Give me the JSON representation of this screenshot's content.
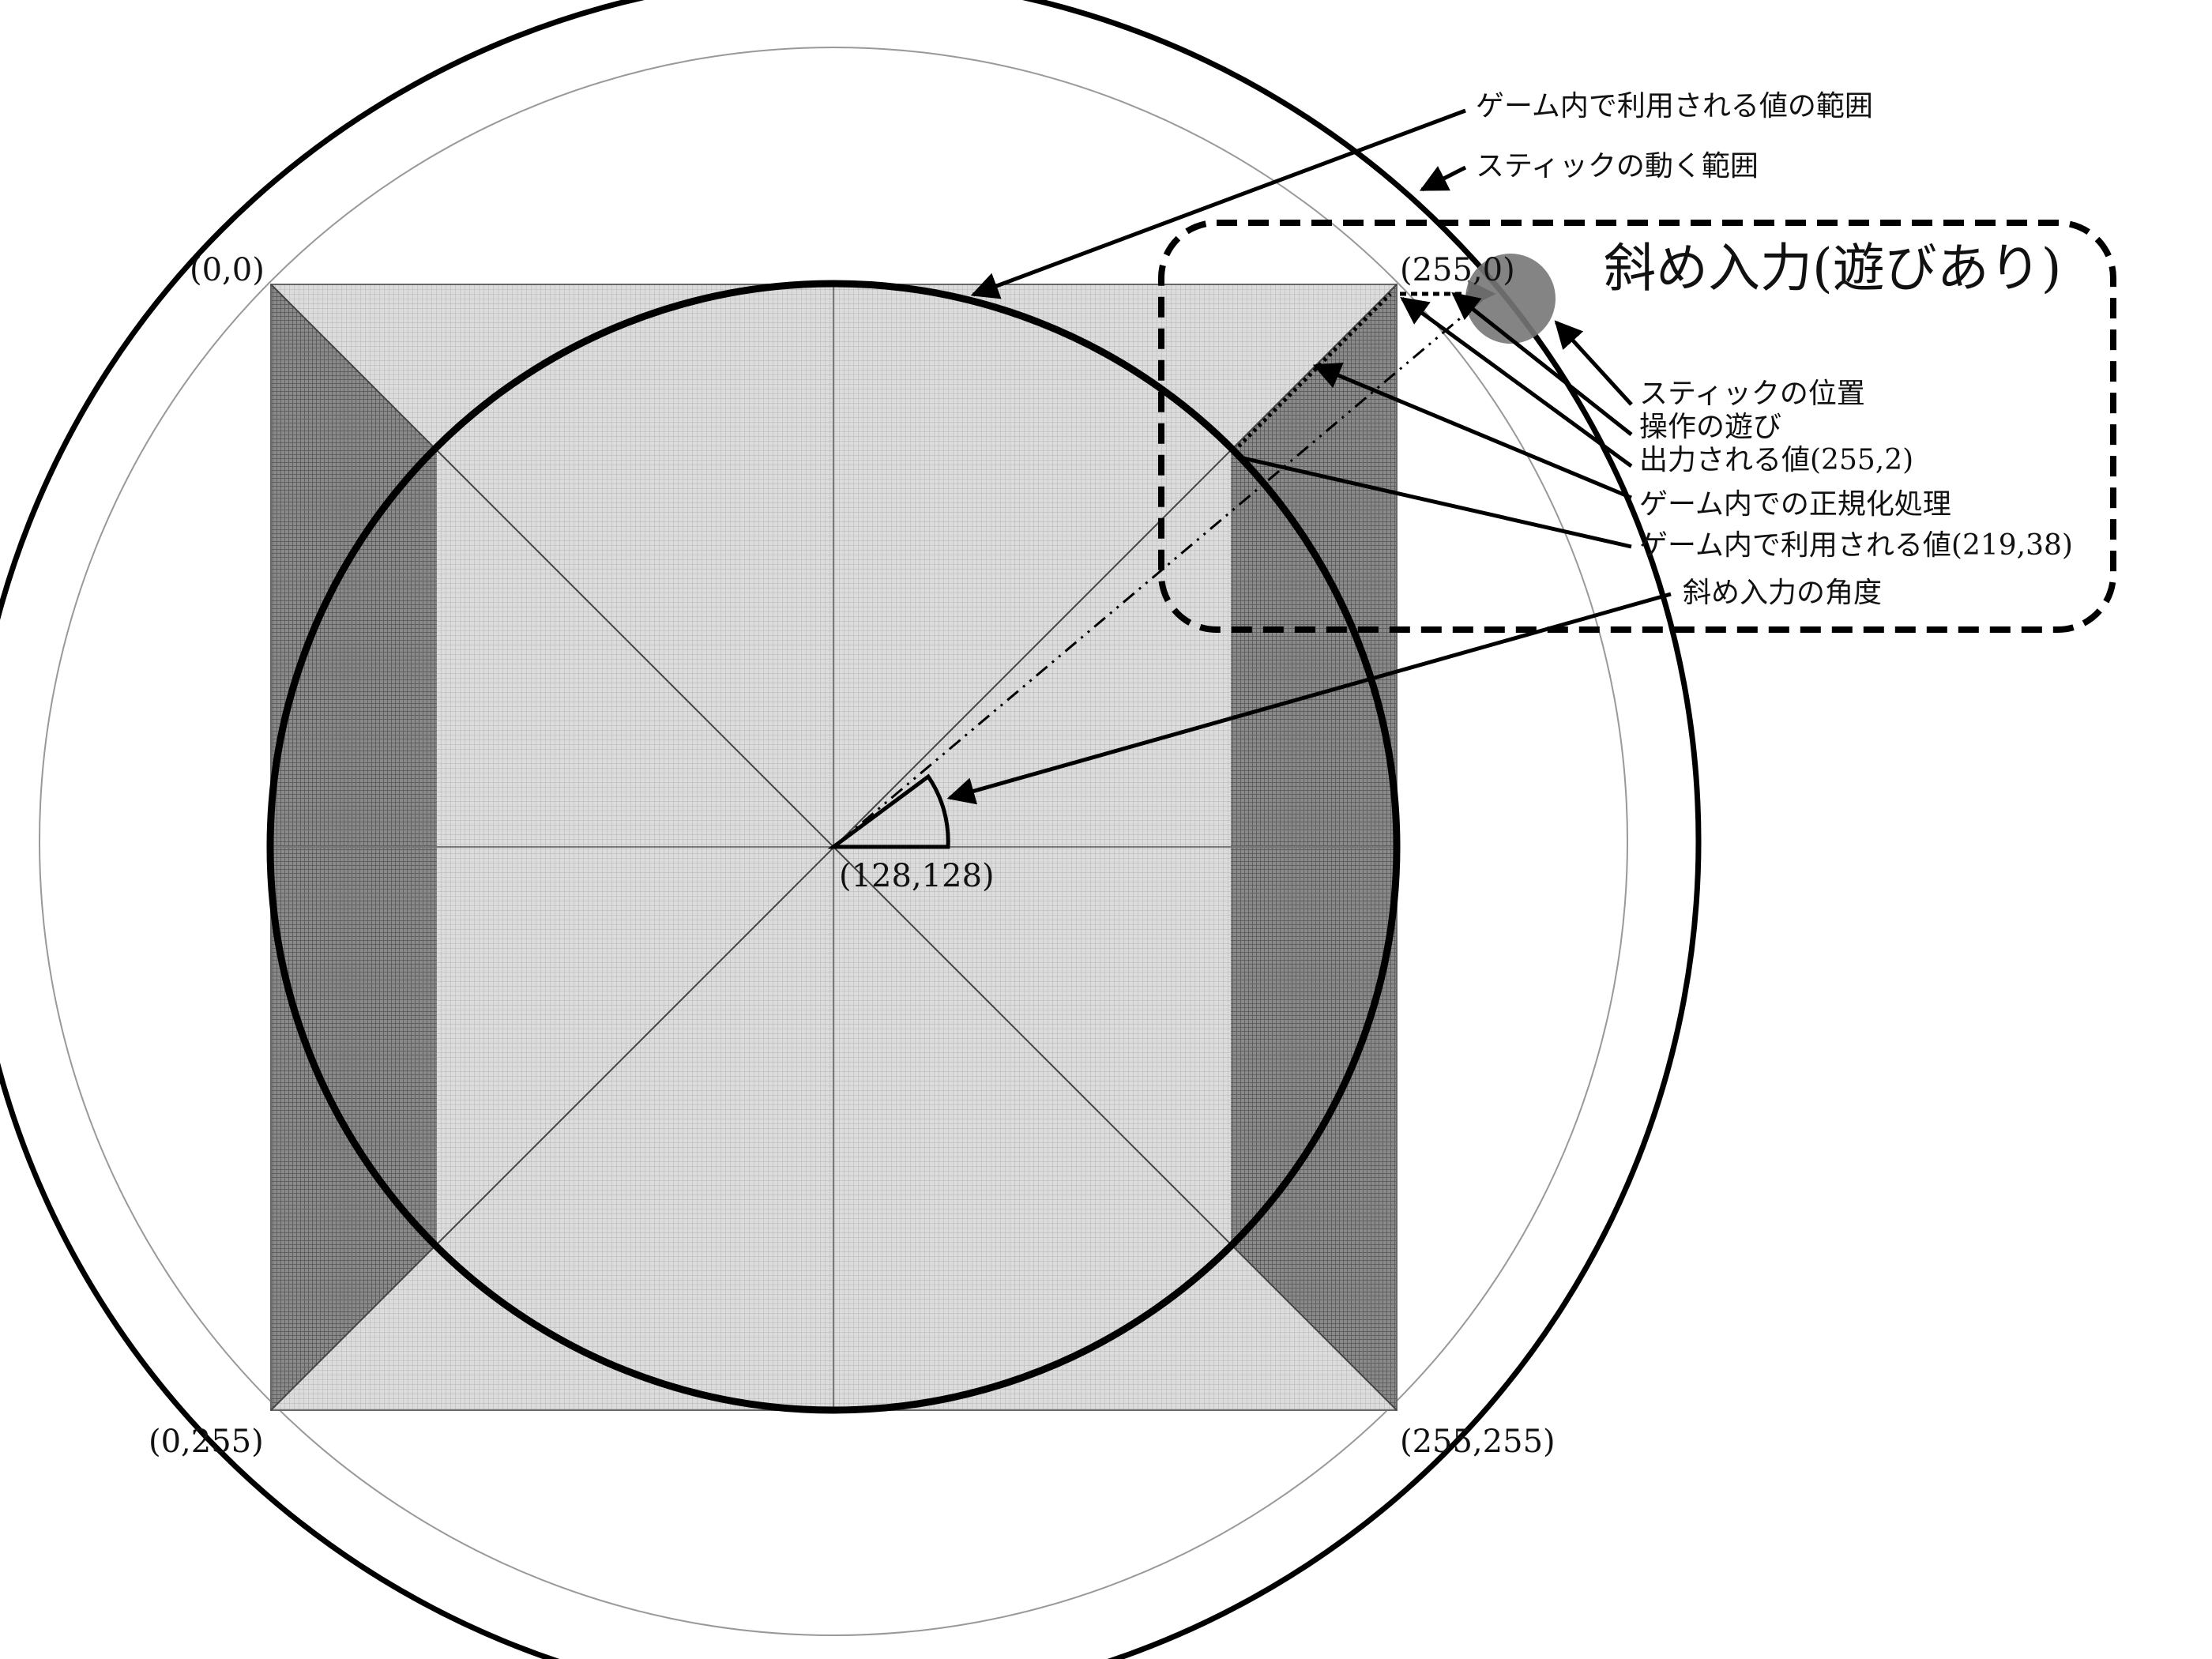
{
  "coordinates": {
    "top_left": "(0,0)",
    "top_right": "(255,0)",
    "bottom_left": "(0,255)",
    "bottom_right": "(255,255)",
    "center": "(128,128)"
  },
  "callout_title": "斜め入力(遊びあり)",
  "labels": {
    "game_value_range": "ゲーム内で利用される値の範囲",
    "stick_range": "スティックの動く範囲",
    "stick_position": "スティックの位置",
    "play": "操作の遊び",
    "output_value": "出力される値(255,2)",
    "normalization": "ゲーム内での正規化処理",
    "game_value": "ゲーム内で利用される値(219,38)",
    "diagonal_angle": "斜め入力の角度"
  }
}
